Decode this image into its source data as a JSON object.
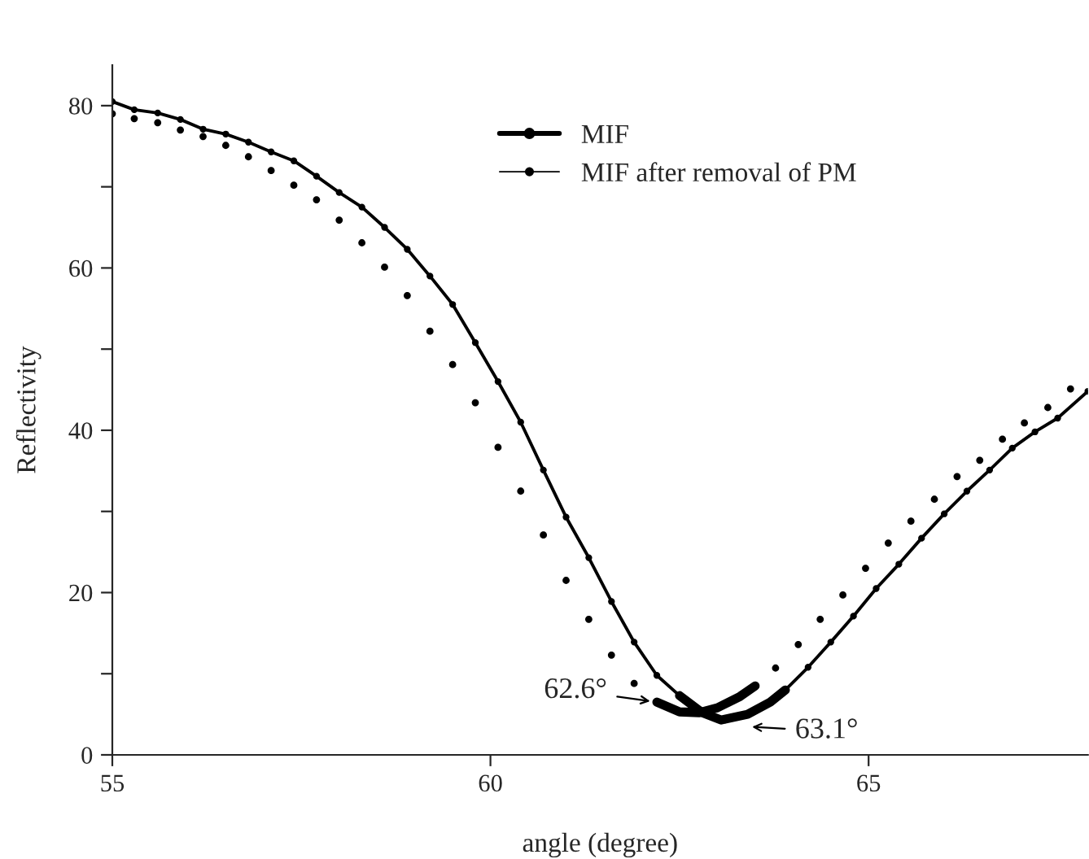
{
  "chart_data": {
    "type": "line",
    "xlabel": "angle (degree)",
    "ylabel": "Reflectivity",
    "xlim": [
      55,
      67.9
    ],
    "xticks": [
      55,
      60,
      65
    ],
    "ylim": [
      0,
      85
    ],
    "yticks": [
      0,
      {
        "value": 10,
        "label": null
      },
      20,
      {
        "value": 30,
        "label": null
      },
      40,
      {
        "value": 50,
        "label": null
      },
      60,
      {
        "value": 70,
        "label": null
      },
      80
    ],
    "grid": false,
    "legend": "top right",
    "series": [
      {
        "name": "MIF",
        "color": "#000000",
        "marker": "circle",
        "x": [
          55.0,
          55.29,
          55.6,
          55.9,
          56.2,
          56.5,
          56.8,
          57.1,
          57.4,
          57.7,
          58.0,
          58.3,
          58.6,
          58.9,
          59.2,
          59.5,
          59.8,
          60.1,
          60.4,
          60.7,
          61.0,
          61.3,
          61.6,
          61.9,
          62.2,
          62.5,
          62.8,
          63.1,
          63.4,
          63.7,
          63.9,
          64.2,
          64.5,
          64.8,
          65.1,
          65.4,
          65.7,
          66.0,
          66.3,
          66.6,
          66.9,
          67.2,
          67.5,
          67.9
        ],
        "values": [
          80.5,
          79.5,
          79.1,
          78.3,
          77.1,
          76.5,
          75.5,
          74.3,
          73.2,
          71.3,
          69.3,
          67.5,
          65.0,
          62.3,
          59.0,
          55.5,
          50.8,
          46.0,
          41.0,
          35.1,
          29.3,
          24.3,
          18.9,
          13.9,
          9.8,
          7.3,
          5.2,
          4.3,
          5.0,
          6.5,
          8.0,
          10.8,
          13.9,
          17.1,
          20.5,
          23.5,
          26.7,
          29.7,
          32.5,
          35.1,
          37.8,
          39.8,
          41.5,
          44.8
        ]
      },
      {
        "name": "MIF after removal of PM",
        "type": "scatter",
        "color": "#000000",
        "marker": "circle",
        "x": [
          55.0,
          55.29,
          55.6,
          55.9,
          56.2,
          56.5,
          56.8,
          57.1,
          57.4,
          57.7,
          58.0,
          58.3,
          58.6,
          58.9,
          59.2,
          59.5,
          59.8,
          60.1,
          60.4,
          60.7,
          61.0,
          61.3,
          61.6,
          61.9,
          63.77,
          64.07,
          64.36,
          64.66,
          64.96,
          65.26,
          65.56,
          65.87,
          66.17,
          66.47,
          66.77,
          67.06,
          67.37,
          67.67
        ],
        "values": [
          79.0,
          78.4,
          77.9,
          77.0,
          76.2,
          75.1,
          73.7,
          72.0,
          70.2,
          68.4,
          65.9,
          63.1,
          60.1,
          56.6,
          52.2,
          48.1,
          43.4,
          37.9,
          32.5,
          27.1,
          21.5,
          16.7,
          12.3,
          8.8,
          10.7,
          13.6,
          16.7,
          19.7,
          23.0,
          26.1,
          28.8,
          31.5,
          34.3,
          36.3,
          38.9,
          40.9,
          42.8,
          45.1
        ]
      },
      {
        "type": "line",
        "color": "#000000",
        "marker": "none",
        "x": [
          62.2,
          62.5,
          62.76,
          63.0,
          63.3,
          63.5
        ],
        "values": [
          6.5,
          5.3,
          5.2,
          5.8,
          7.2,
          8.5
        ]
      },
      {
        "type": "line",
        "color": "#000000",
        "marker": "none",
        "x": [
          62.5,
          62.8,
          63.05,
          63.4,
          63.7,
          63.9
        ],
        "values": [
          7.3,
          5.2,
          4.3,
          5.0,
          6.5,
          8.0
        ]
      }
    ],
    "annotations": [
      {
        "text": "62.6°",
        "x": 62.2,
        "y": 6.5
      },
      {
        "text": "63.1°",
        "x": 63.37,
        "y": 3.5
      }
    ]
  }
}
